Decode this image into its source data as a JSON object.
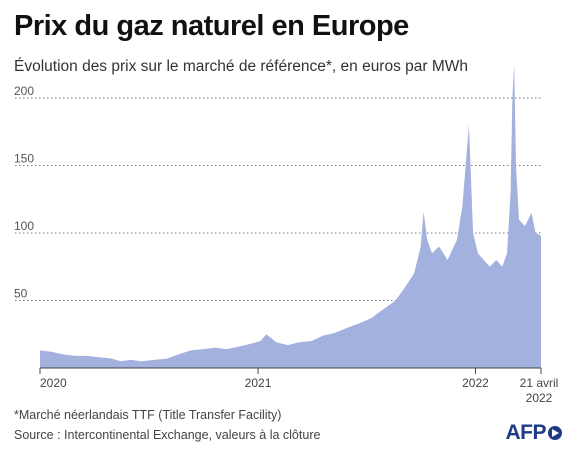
{
  "header": {
    "title": "Prix du gaz naturel en Europe",
    "subtitle": "Évolution des prix sur le marché de référence*, en euros par MWh"
  },
  "footer": {
    "footnote": "*Marché néerlandais TTF (Title Transfer Facility)",
    "source": "Source : Intercontinental Exchange, valeurs à la clôture",
    "logo": "AFP"
  },
  "colors": {
    "area": "#a3b1de",
    "grid": "#7a7a7a",
    "axis": "#444444",
    "logo": "#1d3b86"
  },
  "chart_data": {
    "type": "area",
    "ylim": [
      0,
      200
    ],
    "yticks": [
      50,
      100,
      150,
      200
    ],
    "xlim": [
      "2020-01-01",
      "2022-04-21"
    ],
    "xticks": [
      {
        "date": "2020-01-01",
        "label": "2020",
        "label2": ""
      },
      {
        "date": "2021-01-01",
        "label": "2021",
        "label2": ""
      },
      {
        "date": "2022-01-01",
        "label": "2022",
        "label2": ""
      },
      {
        "date": "2022-04-21",
        "label": "21 avril",
        "label2": "2022"
      }
    ],
    "grid": true,
    "series": [
      {
        "x": [
          "2020-01-01",
          "2020-01-20",
          "2020-02-10",
          "2020-03-01",
          "2020-03-20",
          "2020-04-10",
          "2020-05-01",
          "2020-05-15",
          "2020-06-01",
          "2020-06-20",
          "2020-07-10",
          "2020-08-01",
          "2020-08-20",
          "2020-09-10",
          "2020-10-01",
          "2020-10-20",
          "2020-11-10",
          "2020-12-01",
          "2020-12-20",
          "2021-01-05",
          "2021-01-15",
          "2021-02-01",
          "2021-02-20",
          "2021-03-10",
          "2021-04-01",
          "2021-04-20",
          "2021-05-10",
          "2021-06-01",
          "2021-06-20",
          "2021-07-10",
          "2021-08-01",
          "2021-08-20",
          "2021-09-05",
          "2021-09-20",
          "2021-10-01",
          "2021-10-06",
          "2021-10-12",
          "2021-10-20",
          "2021-11-01",
          "2021-11-15",
          "2021-12-01",
          "2021-12-10",
          "2021-12-21",
          "2021-12-28",
          "2022-01-05",
          "2022-01-15",
          "2022-01-25",
          "2022-02-05",
          "2022-02-15",
          "2022-02-23",
          "2022-03-01",
          "2022-03-04",
          "2022-03-07",
          "2022-03-10",
          "2022-03-15",
          "2022-03-25",
          "2022-04-05",
          "2022-04-12",
          "2022-04-21"
        ],
        "values": [
          13,
          12,
          10,
          9,
          9,
          8,
          7,
          5,
          6,
          5,
          6,
          7,
          10,
          13,
          14,
          15,
          14,
          16,
          18,
          20,
          25,
          19,
          17,
          19,
          20,
          24,
          26,
          30,
          33,
          37,
          44,
          50,
          60,
          70,
          90,
          116,
          95,
          85,
          90,
          80,
          95,
          120,
          180,
          100,
          85,
          80,
          75,
          80,
          75,
          85,
          130,
          200,
          225,
          150,
          110,
          105,
          115,
          100,
          98
        ]
      }
    ]
  }
}
